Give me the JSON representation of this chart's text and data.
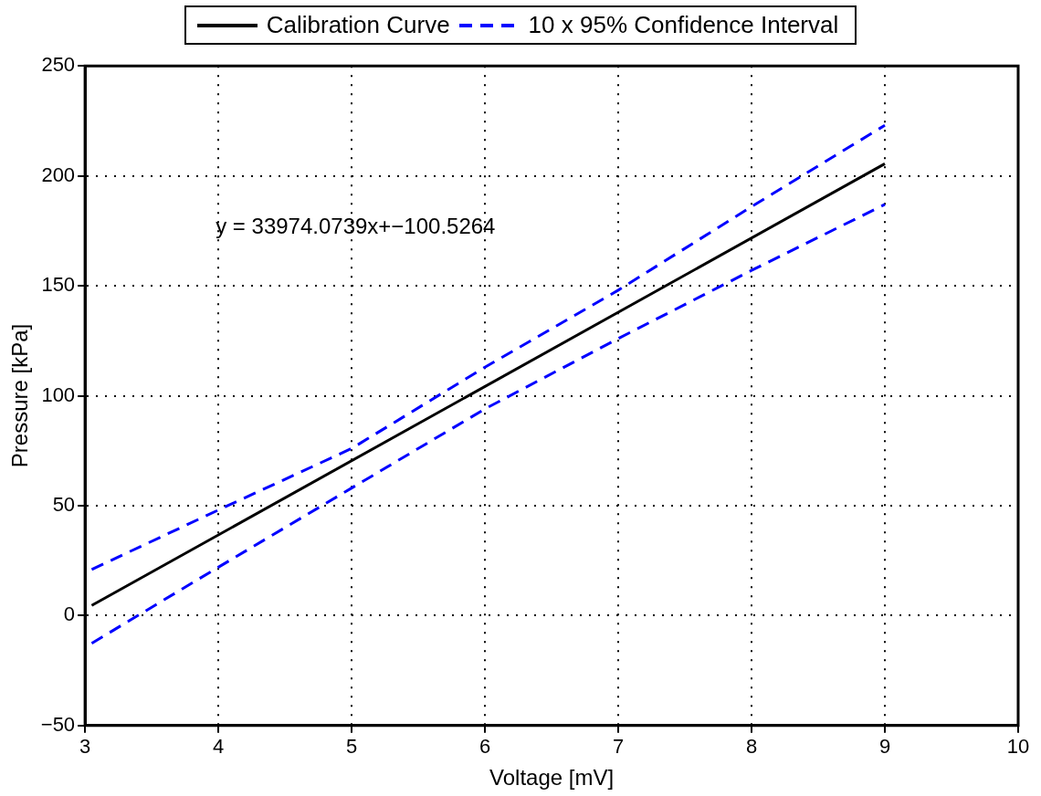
{
  "chart_data": {
    "type": "line",
    "xlabel": "Voltage [mV]",
    "ylabel": "Pressure [kPa]",
    "xlim": [
      3,
      10
    ],
    "xticks": [
      3,
      4,
      5,
      6,
      7,
      8,
      9,
      10
    ],
    "ylim": [
      -50,
      250
    ],
    "yticks": [
      -50,
      0,
      50,
      100,
      150,
      200,
      250
    ],
    "grid": true,
    "legend": "top",
    "marker": "none",
    "annotations": [
      "y = 33974.0739x+−100.5264"
    ],
    "series": [
      {
        "name": "Calibration Curve",
        "color": "#000000",
        "line_style": "solid",
        "x": [
          3.05,
          9
        ],
        "values": [
          4.6,
          205.5
        ]
      },
      {
        "name": "10 x 95% Confidence Interval",
        "color": "#0000ff",
        "line_style": "dashed",
        "x": [
          3.05,
          4,
          5,
          6,
          7,
          8,
          9
        ],
        "values": [
          21,
          48,
          76,
          113,
          148,
          186,
          223
        ]
      },
      {
        "color": "#0000ff",
        "line_style": "dashed",
        "x": [
          3.05,
          4,
          5,
          6,
          7,
          8,
          9
        ],
        "values": [
          -12.6,
          22,
          58,
          94,
          126,
          157,
          187
        ]
      }
    ]
  }
}
